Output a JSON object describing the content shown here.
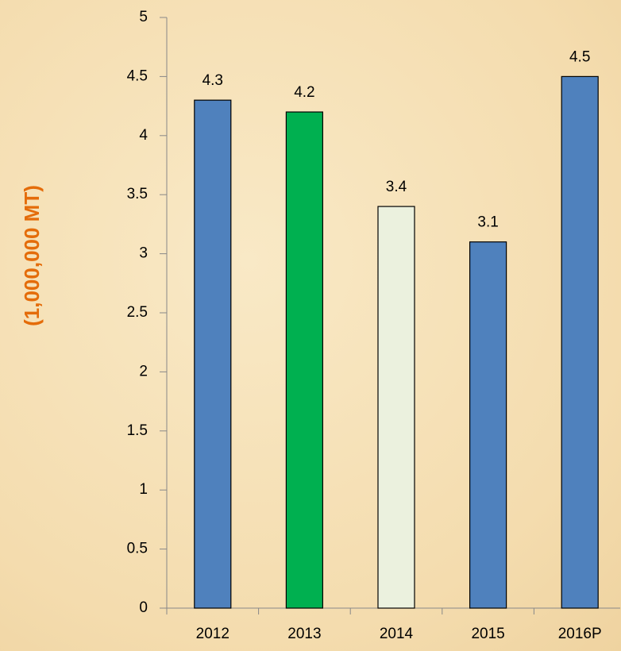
{
  "chart_data": {
    "type": "bar",
    "y_label": "(1,000,000 MT)",
    "categories": [
      "2012",
      "2013",
      "2014",
      "2015",
      "2016P"
    ],
    "values": [
      4.3,
      4.2,
      3.4,
      3.1,
      4.5
    ],
    "colors": [
      "#4f81bd",
      "#00b050",
      "#ebf1de",
      "#4f81bd",
      "#4f81bd"
    ],
    "ylim": [
      0,
      5
    ],
    "yticks": [
      0,
      0.5,
      1,
      1.5,
      2,
      2.5,
      3,
      3.5,
      4,
      4.5,
      5
    ],
    "grid": false
  }
}
